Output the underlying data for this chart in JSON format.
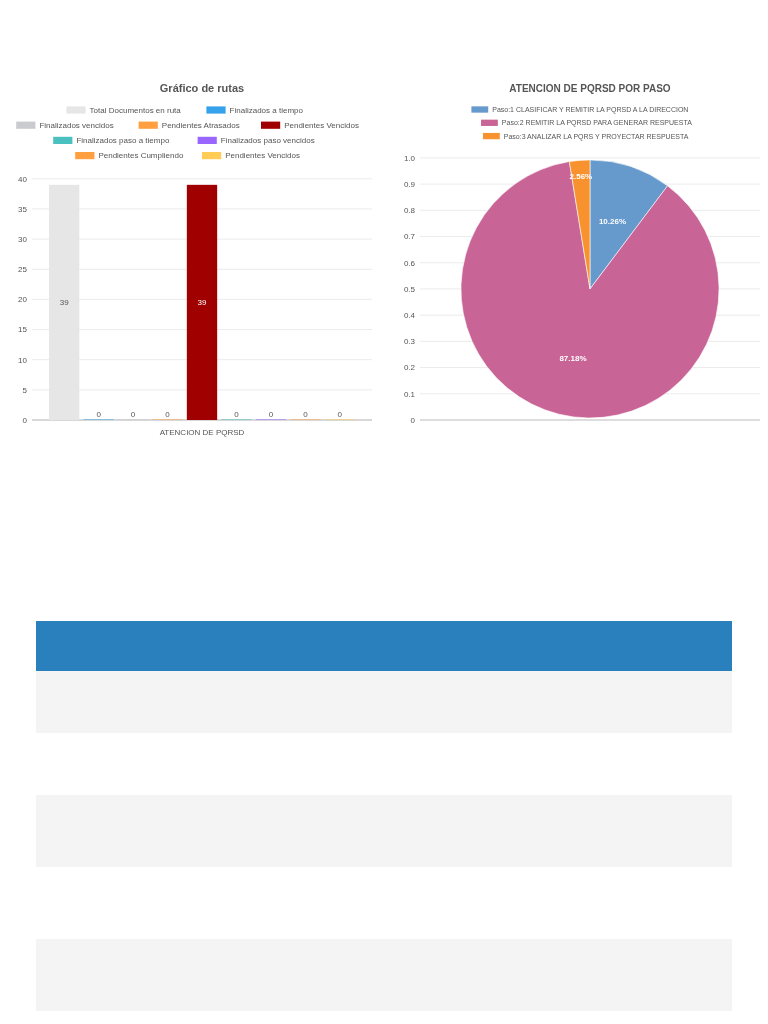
{
  "chart_data": [
    {
      "type": "bar",
      "title": "Gráfico de rutas",
      "categories": [
        "ATENCION DE PQRSD"
      ],
      "series": [
        {
          "name": "Total Documentos en ruta",
          "color": "#e6e6e6",
          "values": [
            39
          ]
        },
        {
          "name": "Finalizados a tiempo",
          "color": "#36a2eb",
          "values": [
            0
          ]
        },
        {
          "name": "Finalizados vencidos",
          "color": "#c9cbcf",
          "values": [
            0
          ]
        },
        {
          "name": "Pendientes Atrasados",
          "color": "#ff9f40",
          "values": [
            0
          ]
        },
        {
          "name": "Pendientes Vencidos",
          "color": "#a00000",
          "values": [
            39
          ]
        },
        {
          "name": "Finalizados paso a tiempo",
          "color": "#4bc0c0",
          "values": [
            0
          ]
        },
        {
          "name": "Finalizados paso vencidos",
          "color": "#9966ff",
          "values": [
            0
          ]
        },
        {
          "name": "Pendientes Cumpliendo",
          "color": "#ff9f40",
          "values": [
            0
          ]
        },
        {
          "name": "Pendientes Vencidos",
          "color": "#ffcd56",
          "values": [
            0
          ]
        }
      ],
      "ylim": [
        0,
        40
      ],
      "yticks": [
        0,
        5,
        10,
        15,
        20,
        25,
        30,
        35,
        40
      ],
      "grid": "y",
      "legend": "top",
      "data_labels": true
    },
    {
      "type": "pie",
      "title": "ATENCION DE PQRSD POR PASO",
      "categories": [
        "Paso:1 CLASIFICAR Y REMITIR LA PQRSD A LA DIRECCION",
        "Paso:2 REMITIR LA PQRSD PARA GENERAR RESPUESTA",
        "Paso:3 ANALIZAR LA PQRS Y PROYECTAR RESPUESTA"
      ],
      "values": [
        10.26,
        87.18,
        2.56
      ],
      "colors": [
        "#6699cc",
        "#c96496",
        "#f7922e"
      ],
      "value_labels": [
        "10.26%",
        "87.18%",
        "2.56%"
      ],
      "annotations": [
        "0",
        "0.1",
        "0.2",
        "0.3",
        "0.4",
        "0.5",
        "0.6",
        "0.7",
        "0.8",
        "0.9",
        "1.0"
      ],
      "grid": "y",
      "legend": "top"
    }
  ]
}
